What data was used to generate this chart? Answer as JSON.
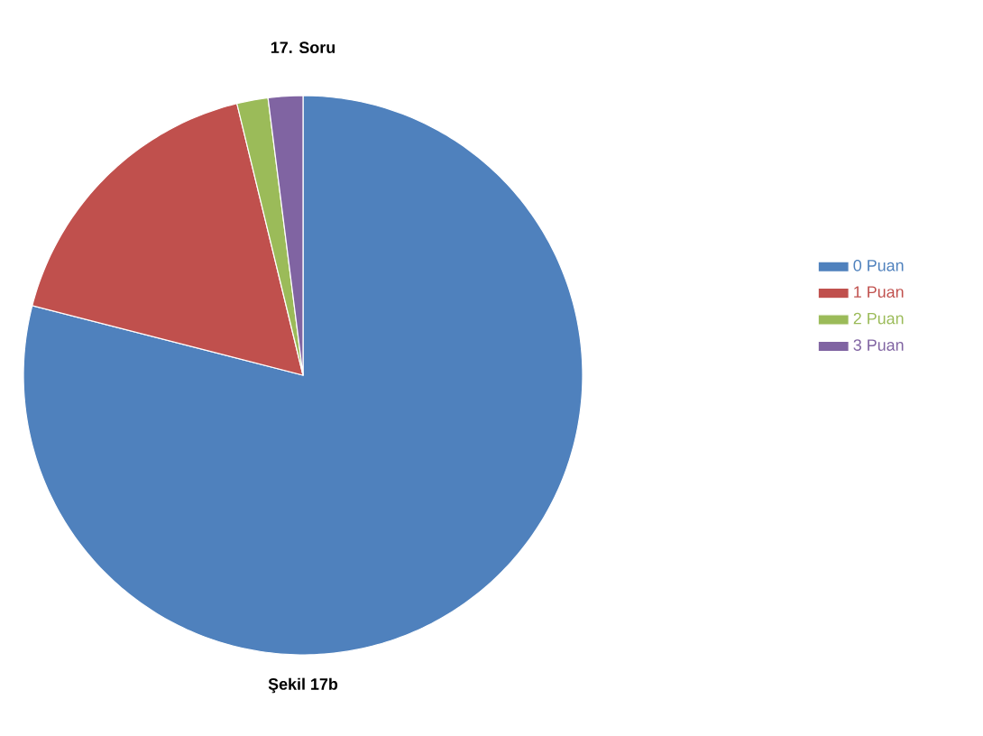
{
  "chart_data": {
    "type": "pie",
    "title": "17. Soru",
    "categories": [
      "0 Puan",
      "1 Puan",
      "2 Puan",
      "3 Puan"
    ],
    "values": [
      79,
      17.2,
      1.8,
      2.0
    ],
    "colors": [
      "#4f81bd",
      "#c0504d",
      "#9bbb59",
      "#8064a2"
    ],
    "legend": "right",
    "annotations": [
      "Şekil 17b"
    ]
  }
}
